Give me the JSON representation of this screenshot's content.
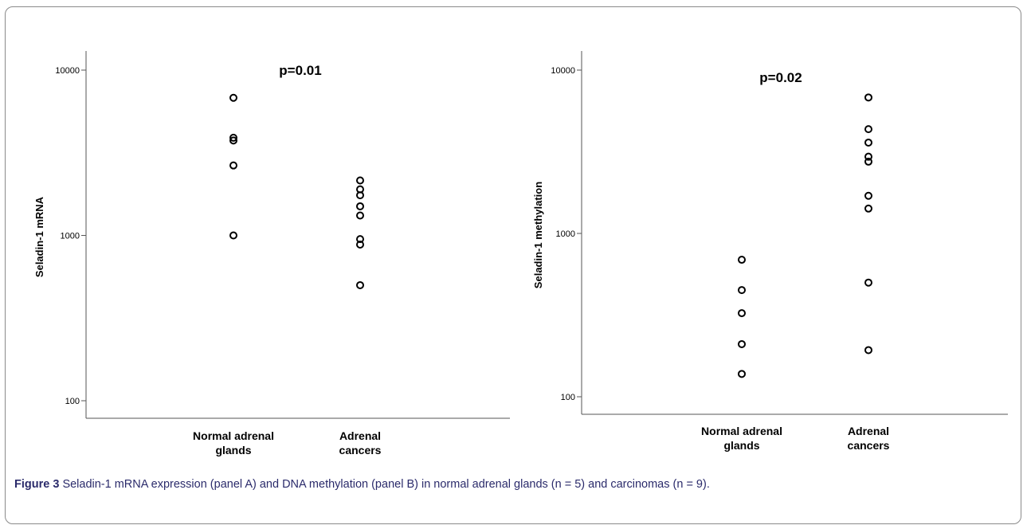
{
  "caption": {
    "label": "Figure 3",
    "text": "Seladin-1 mRNA expression (panel A) and DNA methylation (panel B) in normal adrenal glands (n = 5) and carcinomas (n = 9)."
  },
  "chart_data": [
    {
      "type": "scatter",
      "yscale": "log",
      "ylabel": "Seladin-1 mRNA",
      "annotation": "p=0.01",
      "ylim": [
        100,
        10000
      ],
      "yticks": [
        "100",
        "1000",
        "10000"
      ],
      "categories": [
        [
          "Normal adrenal",
          "glands"
        ],
        [
          "Adrenal",
          "cancers"
        ]
      ],
      "series": [
        {
          "category_index": 0,
          "values": [
            6800,
            3900,
            3750,
            2650,
            1000
          ]
        },
        {
          "category_index": 1,
          "values": [
            2150,
            1900,
            1750,
            1500,
            1320,
            950,
            880,
            500
          ]
        }
      ]
    },
    {
      "type": "scatter",
      "yscale": "log",
      "ylabel": "Seladin-1 methylation",
      "annotation": "p=0.02",
      "ylim": [
        100,
        10000
      ],
      "yticks": [
        "100",
        "1000",
        "10000"
      ],
      "categories": [
        [
          "Normal adrenal",
          "glands"
        ],
        [
          "Adrenal",
          "cancers"
        ]
      ],
      "series": [
        {
          "category_index": 0,
          "values": [
            690,
            450,
            325,
            210,
            138
          ]
        },
        {
          "category_index": 1,
          "values": [
            6800,
            4350,
            3600,
            2950,
            2750,
            1700,
            1420,
            500,
            193
          ]
        }
      ]
    }
  ]
}
